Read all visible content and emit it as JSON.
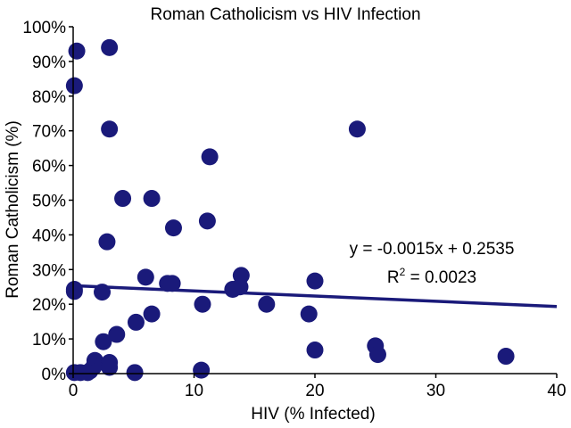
{
  "chart_data": {
    "type": "scatter",
    "title": "Roman Catholicism vs HIV Infection",
    "xlabel": "HIV (% Infected)",
    "ylabel": "Roman Catholicism (%)",
    "xlim": [
      0,
      40
    ],
    "ylim": [
      0,
      1
    ],
    "x_ticks": [
      "0",
      "10",
      "20",
      "30",
      "40"
    ],
    "y_ticks": [
      "0%",
      "10%",
      "20%",
      "30%",
      "40%",
      "50%",
      "60%",
      "70%",
      "80%",
      "90%",
      "100%"
    ],
    "grid": false,
    "point_color": "#1a1a7a",
    "trendline_color": "#1a1a7a",
    "points": [
      {
        "x": 0.3,
        "y": 0.93
      },
      {
        "x": 3.0,
        "y": 0.94
      },
      {
        "x": 0.1,
        "y": 0.83
      },
      {
        "x": 3.0,
        "y": 0.705
      },
      {
        "x": 23.5,
        "y": 0.705
      },
      {
        "x": 11.3,
        "y": 0.625
      },
      {
        "x": 4.1,
        "y": 0.505
      },
      {
        "x": 6.5,
        "y": 0.505
      },
      {
        "x": 11.1,
        "y": 0.44
      },
      {
        "x": 8.3,
        "y": 0.42
      },
      {
        "x": 2.8,
        "y": 0.38
      },
      {
        "x": 13.9,
        "y": 0.283
      },
      {
        "x": 6.0,
        "y": 0.278
      },
      {
        "x": 20.0,
        "y": 0.267
      },
      {
        "x": 7.8,
        "y": 0.26
      },
      {
        "x": 8.2,
        "y": 0.26
      },
      {
        "x": 13.8,
        "y": 0.25
      },
      {
        "x": 13.2,
        "y": 0.243
      },
      {
        "x": 0.1,
        "y": 0.243
      },
      {
        "x": 0.1,
        "y": 0.237
      },
      {
        "x": 2.4,
        "y": 0.235
      },
      {
        "x": 10.7,
        "y": 0.2
      },
      {
        "x": 16.0,
        "y": 0.2
      },
      {
        "x": 6.5,
        "y": 0.172
      },
      {
        "x": 19.5,
        "y": 0.172
      },
      {
        "x": 5.2,
        "y": 0.148
      },
      {
        "x": 3.6,
        "y": 0.113
      },
      {
        "x": 2.5,
        "y": 0.092
      },
      {
        "x": 25.0,
        "y": 0.08
      },
      {
        "x": 20.0,
        "y": 0.068
      },
      {
        "x": 25.2,
        "y": 0.055
      },
      {
        "x": 35.8,
        "y": 0.05
      },
      {
        "x": 1.8,
        "y": 0.038
      },
      {
        "x": 3.0,
        "y": 0.032
      },
      {
        "x": 1.7,
        "y": 0.02
      },
      {
        "x": 3.0,
        "y": 0.018
      },
      {
        "x": 1.4,
        "y": 0.008
      },
      {
        "x": 0.1,
        "y": 0.003
      },
      {
        "x": 0.6,
        "y": 0.003
      },
      {
        "x": 1.2,
        "y": 0.003
      },
      {
        "x": 5.1,
        "y": 0.003
      },
      {
        "x": 10.6,
        "y": 0.01
      }
    ],
    "trendline": {
      "slope": -0.0015,
      "intercept": 0.2535,
      "equation": "y = -0.0015x + 0.2535",
      "r2_prefix": "R",
      "r2_sup": "2",
      "r2_value": " = 0.0023"
    }
  }
}
